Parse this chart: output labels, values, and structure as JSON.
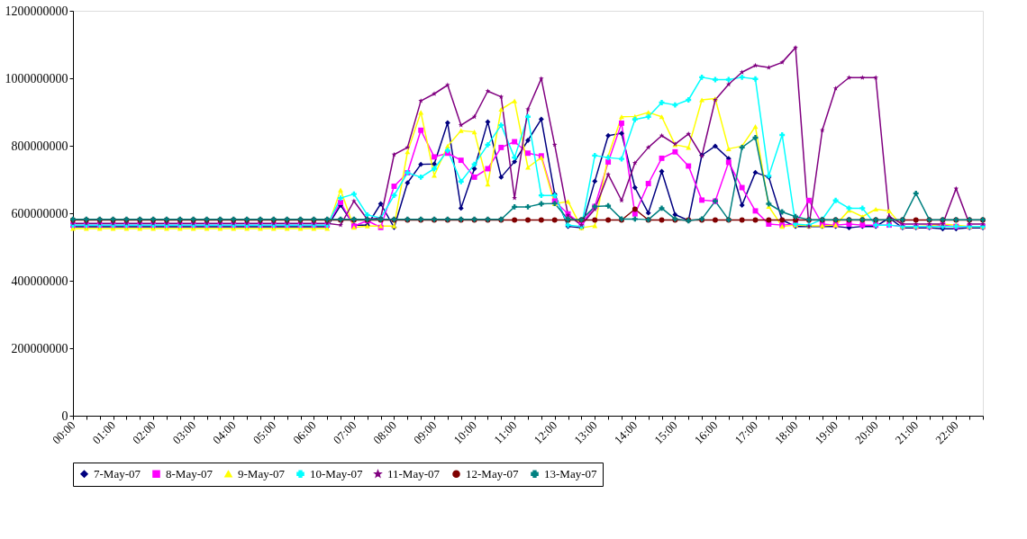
{
  "chart_data": {
    "type": "line",
    "categories": [
      "00:00",
      null,
      null,
      "01:00",
      null,
      null,
      "02:00",
      null,
      null,
      "03:00",
      null,
      null,
      "04:00",
      null,
      null,
      "05:00",
      null,
      null,
      "06:00",
      null,
      null,
      "07:00",
      null,
      null,
      "08:00",
      null,
      null,
      "09:00",
      null,
      null,
      "10:00",
      null,
      null,
      "11:00",
      null,
      null,
      "12:00",
      null,
      null,
      "13:00",
      null,
      null,
      "14:00",
      null,
      null,
      "15:00",
      null,
      null,
      "16:00",
      null,
      null,
      "17:00",
      null,
      null,
      "18:00",
      null,
      null,
      "19:00",
      null,
      null,
      "20:00",
      null,
      null,
      "21:00",
      null,
      null,
      "22:00",
      null,
      null
    ],
    "ylim": [
      0,
      1200000000
    ],
    "yticks": [
      0,
      200000000,
      400000000,
      600000000,
      800000000,
      1000000000,
      1200000000
    ],
    "grid": false,
    "legend": "bottom",
    "series": [
      {
        "name": "7-May-07",
        "color": "#000080",
        "marker": "diamond",
        "values": [
          560000000.0,
          560000000.0,
          560000000.0,
          560000000.0,
          560000000.0,
          560000000.0,
          560000000.0,
          560000000.0,
          560000000.0,
          560000000.0,
          560000000.0,
          560000000.0,
          560000000.0,
          560000000.0,
          560000000.0,
          560000000.0,
          560000000.0,
          560000000.0,
          560000000.0,
          560000000.0,
          624000000.0,
          565000000.0,
          565000000.0,
          628000000.0,
          558000000.0,
          690000000.0,
          745000000.0,
          746000000.0,
          868000000.0,
          615000000.0,
          732000000.0,
          871000000.0,
          707000000.0,
          753000000.0,
          816000000.0,
          879000000.0,
          657000000.0,
          561000000.0,
          557000000.0,
          695000000.0,
          830000000.0,
          837000000.0,
          676000000.0,
          601000000.0,
          724000000.0,
          596000000.0,
          579000000.0,
          772000000.0,
          799000000.0,
          762000000.0,
          624000000.0,
          721000000.0,
          707000000.0,
          580000000.0,
          561000000.0,
          561000000.0,
          561000000.0,
          561000000.0,
          557000000.0,
          561000000.0,
          561000000.0,
          586000000.0,
          557000000.0,
          557000000.0,
          557000000.0,
          554000000.0,
          554000000.0,
          557000000.0,
          557000000.0
        ]
      },
      {
        "name": "8-May-07",
        "color": "#ff00ff",
        "marker": "square",
        "values": [
          565000000.0,
          565000000.0,
          565000000.0,
          565000000.0,
          565000000.0,
          565000000.0,
          565000000.0,
          565000000.0,
          565000000.0,
          565000000.0,
          565000000.0,
          565000000.0,
          565000000.0,
          565000000.0,
          565000000.0,
          565000000.0,
          565000000.0,
          565000000.0,
          565000000.0,
          565000000.0,
          632000000.0,
          562000000.0,
          578000000.0,
          558000000.0,
          680000000.0,
          720000000.0,
          846000000.0,
          767000000.0,
          778000000.0,
          757000000.0,
          707000000.0,
          732000000.0,
          795000000.0,
          812000000.0,
          778000000.0,
          770000000.0,
          636000000.0,
          598000000.0,
          568000000.0,
          620000000.0,
          752000000.0,
          867000000.0,
          598000000.0,
          688000000.0,
          763000000.0,
          782000000.0,
          740000000.0,
          639000000.0,
          636000000.0,
          751000000.0,
          676000000.0,
          607000000.0,
          568000000.0,
          565000000.0,
          568000000.0,
          638000000.0,
          568000000.0,
          565000000.0,
          568000000.0,
          565000000.0,
          565000000.0,
          565000000.0,
          561000000.0,
          561000000.0,
          561000000.0,
          565000000.0,
          561000000.0,
          561000000.0,
          561000000.0
        ]
      },
      {
        "name": "9-May-07",
        "color": "#ffff00",
        "marker": "triangle",
        "values": [
          555000000.0,
          555000000.0,
          555000000.0,
          555000000.0,
          555000000.0,
          555000000.0,
          555000000.0,
          555000000.0,
          555000000.0,
          555000000.0,
          555000000.0,
          555000000.0,
          555000000.0,
          555000000.0,
          555000000.0,
          555000000.0,
          555000000.0,
          555000000.0,
          555000000.0,
          555000000.0,
          669000000.0,
          558000000.0,
          562000000.0,
          562000000.0,
          562000000.0,
          782000000.0,
          899000000.0,
          712000000.0,
          799000000.0,
          845000000.0,
          841000000.0,
          686000000.0,
          908000000.0,
          933000000.0,
          736000000.0,
          765000000.0,
          628000000.0,
          635000000.0,
          557000000.0,
          563000000.0,
          770000000.0,
          886000000.0,
          887000000.0,
          899000000.0,
          886000000.0,
          803000000.0,
          795000000.0,
          936000000.0,
          940000000.0,
          791000000.0,
          799000000.0,
          857000000.0,
          620000000.0,
          561000000.0,
          565000000.0,
          563000000.0,
          563000000.0,
          565000000.0,
          609000000.0,
          590000000.0,
          612000000.0,
          607000000.0,
          561000000.0,
          561000000.0,
          563000000.0,
          568000000.0,
          565000000.0,
          561000000.0,
          561000000.0
        ]
      },
      {
        "name": "10-May-07",
        "color": "#00ffff",
        "marker": "cross",
        "values": [
          565000000.0,
          565000000.0,
          565000000.0,
          565000000.0,
          565000000.0,
          565000000.0,
          565000000.0,
          565000000.0,
          565000000.0,
          565000000.0,
          565000000.0,
          565000000.0,
          565000000.0,
          565000000.0,
          565000000.0,
          565000000.0,
          565000000.0,
          565000000.0,
          565000000.0,
          565000000.0,
          645000000.0,
          657000000.0,
          595000000.0,
          586000000.0,
          653000000.0,
          720000000.0,
          707000000.0,
          732000000.0,
          786000000.0,
          694000000.0,
          745000000.0,
          803000000.0,
          861000000.0,
          765000000.0,
          886000000.0,
          653000000.0,
          653000000.0,
          565000000.0,
          561000000.0,
          771000000.0,
          765000000.0,
          761000000.0,
          878000000.0,
          886000000.0,
          928000000.0,
          921000000.0,
          936000000.0,
          1003000000.0,
          996000000.0,
          996000000.0,
          1003000000.0,
          998000000.0,
          711000000.0,
          832000000.0,
          568000000.0,
          565000000.0,
          582000000.0,
          638000000.0,
          615000000.0,
          615000000.0,
          565000000.0,
          565000000.0,
          561000000.0,
          561000000.0,
          561000000.0,
          561000000.0,
          561000000.0,
          561000000.0,
          561000000.0
        ]
      },
      {
        "name": "11-May-07",
        "color": "#800080",
        "marker": "star",
        "values": [
          570000000.0,
          570000000.0,
          570000000.0,
          570000000.0,
          570000000.0,
          570000000.0,
          570000000.0,
          570000000.0,
          570000000.0,
          570000000.0,
          570000000.0,
          570000000.0,
          570000000.0,
          570000000.0,
          570000000.0,
          570000000.0,
          570000000.0,
          570000000.0,
          570000000.0,
          570000000.0,
          565000000.0,
          636000000.0,
          582000000.0,
          586000000.0,
          774000000.0,
          795000000.0,
          933000000.0,
          954000000.0,
          980000000.0,
          861000000.0,
          886000000.0,
          962000000.0,
          945000000.0,
          645000000.0,
          908000000.0,
          999000000.0,
          803000000.0,
          594000000.0,
          565000000.0,
          612000000.0,
          715000000.0,
          638000000.0,
          749000000.0,
          795000000.0,
          830000000.0,
          805000000.0,
          835000000.0,
          770000000.0,
          936000000.0,
          982000000.0,
          1018000000.0,
          1038000000.0,
          1032000000.0,
          1047000000.0,
          1091000000.0,
          561000000.0,
          846000000.0,
          970000000.0,
          1002000000.0,
          1002000000.0,
          1002000000.0,
          590000000.0,
          568000000.0,
          568000000.0,
          568000000.0,
          568000000.0,
          673000000.0,
          568000000.0,
          568000000.0
        ]
      },
      {
        "name": "12-May-07",
        "color": "#800000",
        "marker": "circle",
        "values": [
          580000000.0,
          580000000.0,
          580000000.0,
          580000000.0,
          580000000.0,
          580000000.0,
          580000000.0,
          580000000.0,
          580000000.0,
          580000000.0,
          580000000.0,
          580000000.0,
          580000000.0,
          580000000.0,
          580000000.0,
          580000000.0,
          580000000.0,
          580000000.0,
          580000000.0,
          580000000.0,
          580000000.0,
          580000000.0,
          580000000.0,
          580000000.0,
          580000000.0,
          580000000.0,
          580000000.0,
          580000000.0,
          580000000.0,
          580000000.0,
          580000000.0,
          580000000.0,
          580000000.0,
          580000000.0,
          580000000.0,
          580000000.0,
          580000000.0,
          580000000.0,
          580000000.0,
          580000000.0,
          580000000.0,
          580000000.0,
          612000000.0,
          580000000.0,
          580000000.0,
          580000000.0,
          580000000.0,
          580000000.0,
          580000000.0,
          580000000.0,
          580000000.0,
          580000000.0,
          580000000.0,
          580000000.0,
          580000000.0,
          580000000.0,
          580000000.0,
          580000000.0,
          580000000.0,
          580000000.0,
          580000000.0,
          580000000.0,
          580000000.0,
          580000000.0,
          580000000.0,
          580000000.0,
          580000000.0,
          580000000.0,
          580000000.0
        ]
      },
      {
        "name": "13-May-07",
        "color": "#008080",
        "marker": "cross",
        "values": [
          582000000.0,
          582000000.0,
          582000000.0,
          582000000.0,
          582000000.0,
          582000000.0,
          582000000.0,
          582000000.0,
          582000000.0,
          582000000.0,
          582000000.0,
          582000000.0,
          582000000.0,
          582000000.0,
          582000000.0,
          582000000.0,
          582000000.0,
          582000000.0,
          582000000.0,
          582000000.0,
          582000000.0,
          582000000.0,
          582000000.0,
          582000000.0,
          582000000.0,
          582000000.0,
          582000000.0,
          582000000.0,
          582000000.0,
          582000000.0,
          582000000.0,
          582000000.0,
          582000000.0,
          619000000.0,
          619000000.0,
          628000000.0,
          629000000.0,
          582000000.0,
          581000000.0,
          620000000.0,
          622000000.0,
          583000000.0,
          583000000.0,
          581000000.0,
          615000000.0,
          583000000.0,
          578000000.0,
          583000000.0,
          636000000.0,
          581000000.0,
          795000000.0,
          824000000.0,
          628000000.0,
          604000000.0,
          590000000.0,
          581000000.0,
          581000000.0,
          581000000.0,
          581000000.0,
          581000000.0,
          581000000.0,
          581000000.0,
          581000000.0,
          659000000.0,
          581000000.0,
          581000000.0,
          581000000.0,
          581000000.0,
          581000000.0
        ]
      }
    ]
  }
}
